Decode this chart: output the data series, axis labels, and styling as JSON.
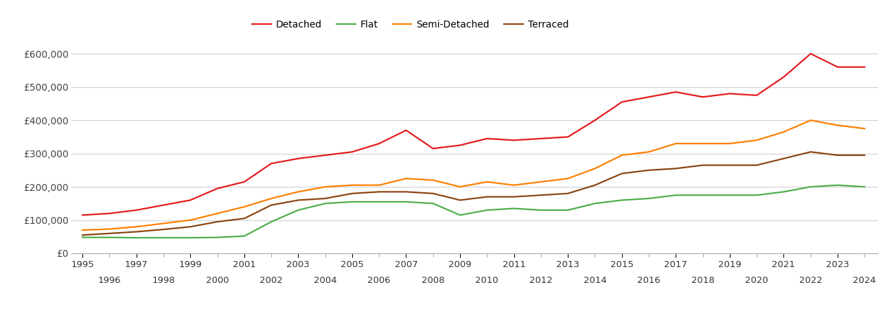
{
  "series": {
    "Detached": {
      "color": "#e41a1c",
      "years": [
        1995,
        1996,
        1997,
        1998,
        1999,
        2000,
        2001,
        2002,
        2003,
        2004,
        2005,
        2006,
        2007,
        2008,
        2009,
        2010,
        2011,
        2012,
        2013,
        2014,
        2015,
        2016,
        2017,
        2018,
        2019,
        2020,
        2021,
        2022,
        2023,
        2024
      ],
      "values": [
        115000,
        120000,
        130000,
        145000,
        160000,
        195000,
        215000,
        270000,
        285000,
        295000,
        305000,
        330000,
        370000,
        315000,
        325000,
        345000,
        340000,
        345000,
        350000,
        400000,
        455000,
        470000,
        485000,
        470000,
        480000,
        475000,
        530000,
        600000,
        560000,
        560000
      ]
    },
    "Flat": {
      "color": "#4daf4a",
      "years": [
        1995,
        1996,
        1997,
        1998,
        1999,
        2000,
        2001,
        2002,
        2003,
        2004,
        2005,
        2006,
        2007,
        2008,
        2009,
        2010,
        2011,
        2012,
        2013,
        2014,
        2015,
        2016,
        2017,
        2018,
        2019,
        2020,
        2021,
        2022,
        2023,
        2024
      ],
      "values": [
        48000,
        48000,
        47000,
        47000,
        47000,
        48000,
        52000,
        95000,
        130000,
        150000,
        155000,
        155000,
        155000,
        150000,
        115000,
        130000,
        135000,
        130000,
        130000,
        150000,
        160000,
        165000,
        175000,
        175000,
        175000,
        175000,
        185000,
        200000,
        205000,
        200000
      ]
    },
    "Semi-Detached": {
      "color": "#ff7f00",
      "years": [
        1995,
        1996,
        1997,
        1998,
        1999,
        2000,
        2001,
        2002,
        2003,
        2004,
        2005,
        2006,
        2007,
        2008,
        2009,
        2010,
        2011,
        2012,
        2013,
        2014,
        2015,
        2016,
        2017,
        2018,
        2019,
        2020,
        2021,
        2022,
        2023,
        2024
      ],
      "values": [
        70000,
        73000,
        80000,
        90000,
        100000,
        120000,
        140000,
        165000,
        185000,
        200000,
        205000,
        205000,
        225000,
        220000,
        200000,
        215000,
        205000,
        215000,
        225000,
        255000,
        295000,
        305000,
        330000,
        330000,
        330000,
        340000,
        365000,
        400000,
        385000,
        375000
      ]
    },
    "Terraced": {
      "color": "#8B4513",
      "years": [
        1995,
        1996,
        1997,
        1998,
        1999,
        2000,
        2001,
        2002,
        2003,
        2004,
        2005,
        2006,
        2007,
        2008,
        2009,
        2010,
        2011,
        2012,
        2013,
        2014,
        2015,
        2016,
        2017,
        2018,
        2019,
        2020,
        2021,
        2022,
        2023,
        2024
      ],
      "values": [
        55000,
        60000,
        65000,
        72000,
        80000,
        95000,
        105000,
        145000,
        160000,
        165000,
        180000,
        185000,
        185000,
        180000,
        160000,
        170000,
        170000,
        175000,
        180000,
        205000,
        240000,
        250000,
        255000,
        265000,
        265000,
        265000,
        285000,
        305000,
        295000,
        295000
      ]
    }
  },
  "xlim_min": 1994.6,
  "xlim_max": 2024.5,
  "ylim": [
    0,
    650000
  ],
  "yticks": [
    0,
    100000,
    200000,
    300000,
    400000,
    500000,
    600000
  ],
  "ytick_labels": [
    "£0",
    "£100,000",
    "£200,000",
    "£300,000",
    "£400,000",
    "£500,000",
    "£600,000"
  ],
  "xticks_row1": [
    1995,
    1997,
    1999,
    2001,
    2003,
    2005,
    2007,
    2009,
    2011,
    2013,
    2015,
    2017,
    2019,
    2021,
    2023
  ],
  "xticks_row2": [
    1996,
    1998,
    2000,
    2002,
    2004,
    2006,
    2008,
    2010,
    2012,
    2014,
    2016,
    2018,
    2020,
    2022,
    2024
  ],
  "background_color": "#ffffff",
  "grid_color": "#d0d0d0",
  "legend_order": [
    "Detached",
    "Flat",
    "Semi-Detached",
    "Terraced"
  ]
}
